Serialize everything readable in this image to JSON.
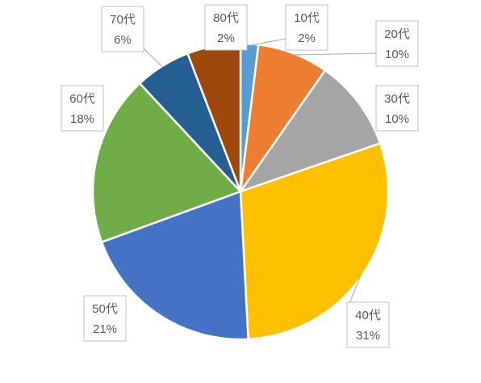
{
  "chart_data": {
    "type": "pie",
    "title": "",
    "categories": [
      "10代",
      "20代",
      "30代",
      "40代",
      "50代",
      "60代",
      "70代",
      "80代"
    ],
    "values": [
      2,
      10,
      10,
      31,
      21,
      18,
      6,
      2
    ],
    "value_labels": [
      "2%",
      "10%",
      "10%",
      "31%",
      "21%",
      "18%",
      "6%",
      "2%"
    ],
    "colors": [
      "#5B9BD5",
      "#ED7D31",
      "#A5A5A5",
      "#FFC000",
      "#4472C4",
      "#70AD47",
      "#255E91",
      "#9E480E"
    ],
    "legend": "none",
    "data_labels": "category name and percentage, outside end with leader lines"
  }
}
